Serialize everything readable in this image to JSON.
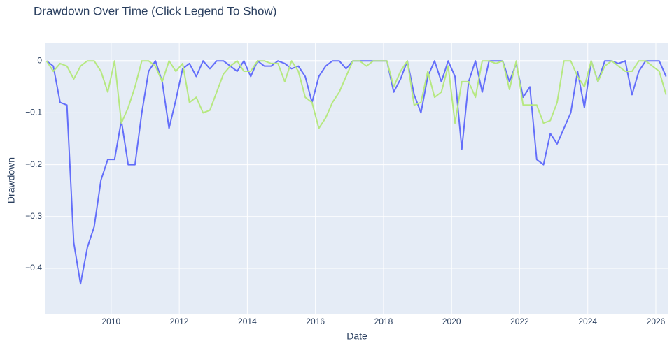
{
  "chart_data": {
    "type": "line",
    "title": "Drawdown Over Time (Click Legend To Show)",
    "x_label": "Date",
    "y_label": "Drawdown",
    "x": [
      2008.1,
      2008.3,
      2008.5,
      2008.7,
      2008.9,
      2009.1,
      2009.3,
      2009.5,
      2009.7,
      2009.9,
      2010.1,
      2010.3,
      2010.5,
      2010.7,
      2010.9,
      2011.1,
      2011.3,
      2011.5,
      2011.7,
      2011.9,
      2012.1,
      2012.3,
      2012.5,
      2012.7,
      2012.9,
      2013.1,
      2013.3,
      2013.5,
      2013.7,
      2013.9,
      2014.1,
      2014.3,
      2014.5,
      2014.7,
      2014.9,
      2015.1,
      2015.3,
      2015.5,
      2015.7,
      2015.9,
      2016.1,
      2016.3,
      2016.5,
      2016.7,
      2016.9,
      2017.1,
      2017.3,
      2017.5,
      2017.7,
      2017.9,
      2018.1,
      2018.3,
      2018.5,
      2018.7,
      2018.9,
      2019.1,
      2019.3,
      2019.5,
      2019.7,
      2019.9,
      2020.1,
      2020.3,
      2020.5,
      2020.7,
      2020.9,
      2021.1,
      2021.3,
      2021.5,
      2021.7,
      2021.9,
      2022.1,
      2022.3,
      2022.5,
      2022.7,
      2022.9,
      2023.1,
      2023.3,
      2023.5,
      2023.7,
      2023.9,
      2024.1,
      2024.3,
      2024.5,
      2024.7,
      2024.9,
      2025.1,
      2025.3,
      2025.5,
      2025.7,
      2025.9,
      2026.1,
      2026.3
    ],
    "series": [
      {
        "color": "#636efa",
        "values": [
          0,
          -0.01,
          -0.08,
          -0.085,
          -0.35,
          -0.43,
          -0.36,
          -0.32,
          -0.23,
          -0.19,
          -0.19,
          -0.115,
          -0.2,
          -0.2,
          -0.1,
          -0.02,
          0,
          -0.04,
          -0.13,
          -0.075,
          -0.015,
          -0.005,
          -0.03,
          0,
          -0.015,
          0,
          0,
          -0.01,
          -0.02,
          0,
          -0.03,
          0,
          -0.01,
          -0.01,
          0,
          -0.005,
          -0.015,
          -0.01,
          -0.03,
          -0.08,
          -0.03,
          -0.01,
          0,
          0,
          -0.015,
          0,
          0,
          0,
          0,
          0,
          0,
          -0.06,
          -0.035,
          0,
          -0.065,
          -0.1,
          -0.03,
          0,
          -0.04,
          0,
          -0.03,
          -0.17,
          -0.04,
          0,
          -0.06,
          0,
          0,
          0,
          -0.04,
          -0.005,
          -0.07,
          -0.05,
          -0.19,
          -0.2,
          -0.14,
          -0.16,
          -0.13,
          -0.1,
          -0.02,
          -0.09,
          0,
          -0.04,
          0,
          0,
          -0.005,
          0,
          -0.065,
          -0.02,
          0,
          0,
          0,
          -0.03
        ]
      },
      {
        "color": "#b6e880",
        "values": [
          0,
          -0.02,
          -0.005,
          -0.01,
          -0.035,
          -0.01,
          0,
          0,
          -0.02,
          -0.06,
          0,
          -0.12,
          -0.09,
          -0.05,
          0,
          0,
          -0.01,
          -0.04,
          0,
          -0.02,
          -0.005,
          -0.08,
          -0.07,
          -0.1,
          -0.095,
          -0.06,
          -0.025,
          -0.01,
          0,
          -0.02,
          -0.02,
          0,
          0,
          -0.005,
          -0.005,
          -0.04,
          0,
          -0.02,
          -0.07,
          -0.08,
          -0.13,
          -0.11,
          -0.08,
          -0.06,
          -0.03,
          0,
          0,
          -0.01,
          0,
          0,
          0,
          -0.05,
          -0.02,
          0,
          -0.085,
          -0.08,
          -0.02,
          -0.07,
          -0.06,
          -0.01,
          -0.12,
          -0.04,
          -0.04,
          -0.07,
          0,
          0,
          -0.005,
          0,
          -0.055,
          0,
          -0.085,
          -0.085,
          -0.085,
          -0.12,
          -0.115,
          -0.08,
          0,
          0,
          -0.03,
          -0.05,
          0,
          -0.04,
          -0.01,
          0,
          -0.01,
          -0.02,
          -0.02,
          0,
          0,
          -0.01,
          -0.02,
          -0.065
        ]
      }
    ],
    "xlim": [
      2008.07,
      2026.37
    ],
    "xticks": [
      2010,
      2012,
      2014,
      2016,
      2018,
      2020,
      2022,
      2024,
      2026
    ],
    "ylim": [
      -0.489,
      0.034
    ],
    "yticks": [
      0,
      {
        "value": -0.1,
        "label": "−0.1"
      },
      {
        "value": -0.2,
        "label": "−0.2"
      },
      {
        "value": -0.3,
        "label": "−0.3"
      },
      {
        "value": -0.4,
        "label": "−0.4"
      }
    ],
    "grid": true
  }
}
